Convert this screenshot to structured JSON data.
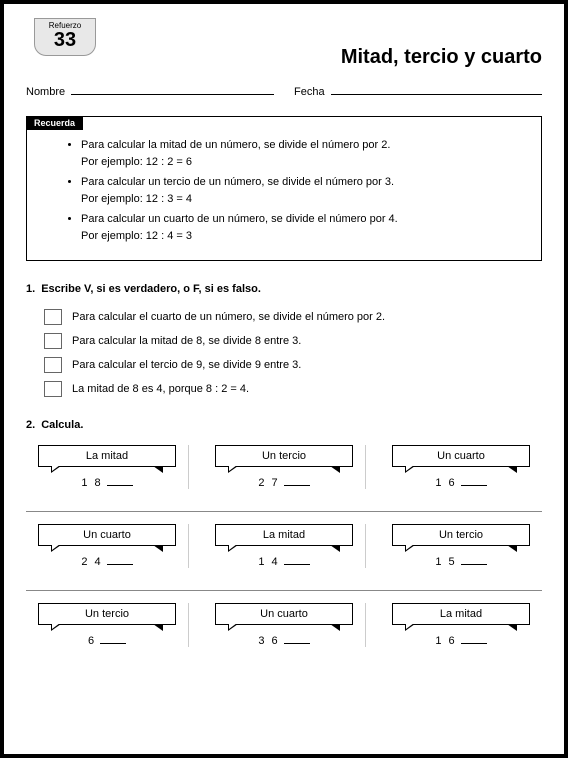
{
  "badge": {
    "label": "Refuerzo",
    "number": "33"
  },
  "title": "Mitad, tercio y cuarto",
  "fields": {
    "name_label": "Nombre",
    "date_label": "Fecha"
  },
  "recuerda": {
    "tag": "Recuerda",
    "items": [
      {
        "text": "Para calcular la mitad de un número, se divide el número por 2.",
        "example": "Por ejemplo: 12 : 2 = 6"
      },
      {
        "text": "Para calcular un tercio de un número, se divide el número por 3.",
        "example": "Por ejemplo: 12 : 3 = 4"
      },
      {
        "text": "Para calcular un cuarto de un número, se divide el número por 4.",
        "example": "Por ejemplo: 12 : 4 = 3"
      }
    ]
  },
  "q1": {
    "num": "1.",
    "prompt": "Escribe V, si es verdadero, o F, si es falso.",
    "items": [
      "Para calcular el cuarto de un número, se divide el número por 2.",
      "Para calcular la mitad de 8, se divide 8 entre 3.",
      "Para calcular el tercio de 9, se divide 9 entre 3.",
      "La mitad de 8 es 4, porque 8 : 2 = 4."
    ]
  },
  "q2": {
    "num": "2.",
    "prompt": "Calcula.",
    "grid": [
      [
        {
          "label": "La mitad",
          "value": "1 8"
        },
        {
          "label": "Un tercio",
          "value": "2 7"
        },
        {
          "label": "Un cuarto",
          "value": "1 6"
        }
      ],
      [
        {
          "label": "Un cuarto",
          "value": "2 4"
        },
        {
          "label": "La mitad",
          "value": "1 4"
        },
        {
          "label": "Un tercio",
          "value": "1 5"
        }
      ],
      [
        {
          "label": "Un tercio",
          "value": "6"
        },
        {
          "label": "Un cuarto",
          "value": "3 6"
        },
        {
          "label": "La mitad",
          "value": "1 6"
        }
      ]
    ]
  },
  "colors": {
    "border": "#000000",
    "badge_bg": "#e8e8e8",
    "grid_line": "#cccccc"
  }
}
